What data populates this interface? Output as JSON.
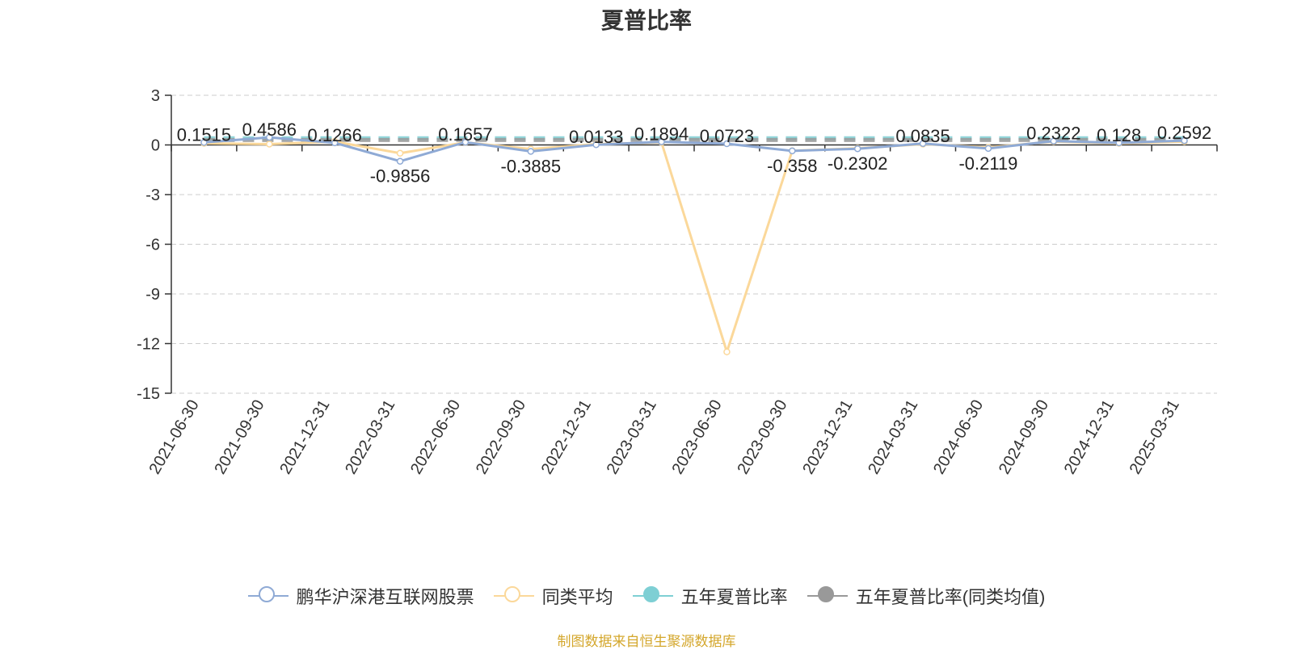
{
  "title": "夏普比率",
  "source": "制图数据来自恒生聚源数据库",
  "legend": [
    {
      "label": "鹏华沪深港互联网股票",
      "color": "#8faad5",
      "filled": false
    },
    {
      "label": "同类平均",
      "color": "#fbd89a",
      "filled": false
    },
    {
      "label": "五年夏普比率",
      "color": "#7ecfd4",
      "filled": true
    },
    {
      "label": "五年夏普比率(同类均值)",
      "color": "#999999",
      "filled": true
    }
  ],
  "chart_data": {
    "type": "line",
    "title": "夏普比率",
    "categories": [
      "2021-06-30",
      "2021-09-30",
      "2021-12-31",
      "2022-03-31",
      "2022-06-30",
      "2022-09-30",
      "2022-12-31",
      "2023-03-31",
      "2023-06-30",
      "2023-09-30",
      "2023-12-31",
      "2024-03-31",
      "2024-06-30",
      "2024-09-30",
      "2024-12-31",
      "2025-03-31"
    ],
    "ylim": [
      -15,
      3
    ],
    "yticks": [
      3,
      0,
      -3,
      -6,
      -9,
      -12,
      -15
    ],
    "grid": true,
    "legend_position": "bottom",
    "series": [
      {
        "name": "鹏华沪深港互联网股票",
        "color": "#8faad5",
        "values": [
          0.1515,
          0.4586,
          0.1266,
          -0.9856,
          0.1657,
          -0.3885,
          0.0133,
          0.1894,
          0.0723,
          -0.358,
          -0.2302,
          0.0835,
          -0.2119,
          0.2322,
          0.128,
          0.2592
        ],
        "labels": [
          "0.1515",
          "0.4586",
          "0.1266",
          "-0.9856",
          "0.1657",
          "-0.3885",
          "0.0133",
          "0.1894",
          "0.0723",
          "-0.358",
          "-0.2302",
          "0.0835",
          "-0.2119",
          "0.2322",
          "0.128",
          "0.2592"
        ]
      },
      {
        "name": "同类平均",
        "color": "#fbd89a",
        "values": [
          0.1,
          0.05,
          0.2,
          -0.5,
          0.15,
          -0.25,
          0.05,
          0.15,
          -12.5,
          -0.35,
          -0.2,
          0.05,
          -0.15,
          0.2,
          0.1,
          0.2
        ]
      },
      {
        "name": "五年夏普比率",
        "color": "#7ecfd4",
        "dashed": true,
        "values": [
          0.4,
          0.4,
          0.4,
          0.4,
          0.4,
          0.4,
          0.4,
          0.4,
          0.4,
          0.4,
          0.4,
          0.4,
          0.4,
          0.4,
          0.4,
          0.4
        ]
      },
      {
        "name": "五年夏普比率(同类均值)",
        "color": "#999999",
        "dashed": true,
        "values": [
          0.3,
          0.3,
          0.3,
          0.3,
          0.3,
          0.3,
          0.3,
          0.3,
          0.3,
          0.3,
          0.3,
          0.3,
          0.3,
          0.3,
          0.3,
          0.3
        ]
      }
    ]
  }
}
